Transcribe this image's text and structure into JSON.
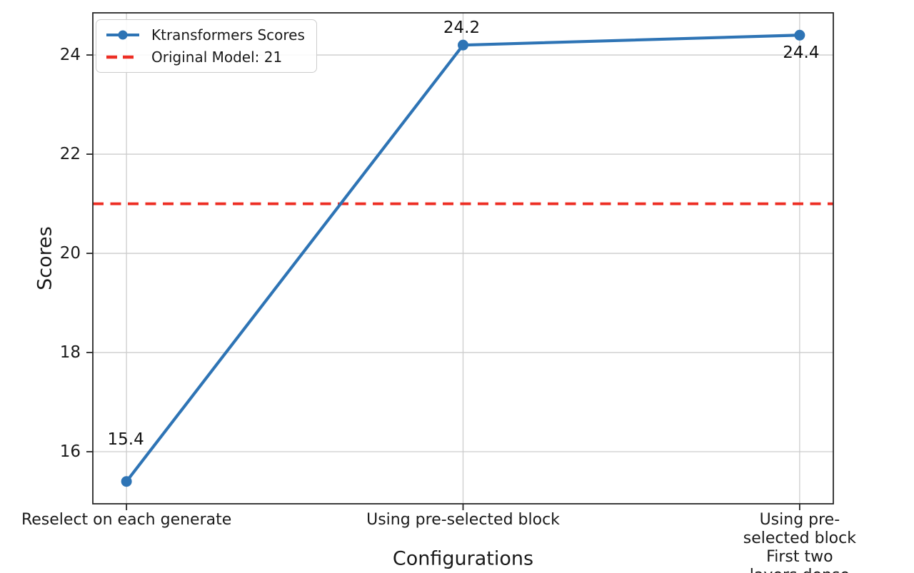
{
  "chart_data": {
    "type": "line",
    "title": "",
    "xlabel": "Configurations",
    "ylabel": "Scores",
    "categories": [
      "Reselect on each generate",
      "Using pre-selected block",
      "Using pre-selected block\nFirst two layers dense"
    ],
    "series": [
      {
        "name": "Ktransformers Scores",
        "values": [
          15.4,
          24.2,
          24.4
        ],
        "color": "#2e74b5",
        "marker": "circle",
        "line_style": "solid"
      }
    ],
    "reference_line": {
      "label": "Original Model: 21",
      "value": 21,
      "color": "#ed2e24",
      "line_style": "dashed"
    },
    "annotations": [
      "15.4",
      "24.2",
      "24.4"
    ],
    "yticks": [
      "16",
      "18",
      "20",
      "22",
      "24"
    ],
    "ytick_values": [
      16,
      18,
      20,
      22,
      24
    ],
    "ylim": [
      14.95,
      24.85
    ],
    "grid": true,
    "grid_color": "#cccccc",
    "spine_color": "#262626",
    "legend_position": "upper left",
    "legend_entries": [
      "Ktransformers Scores",
      "Original Model: 21"
    ]
  }
}
